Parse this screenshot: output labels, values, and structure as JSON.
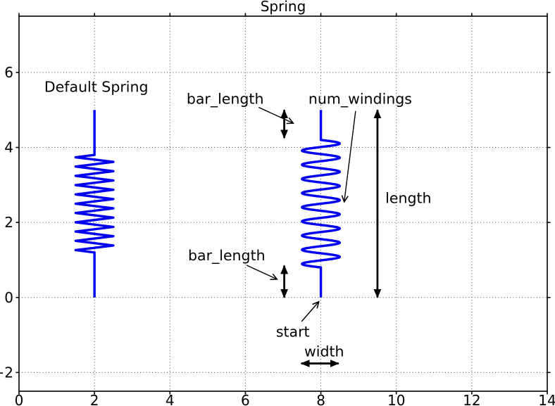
{
  "colors": {
    "spring": "#0000ee",
    "axis": "#000000",
    "grid": "#444444",
    "annotation": "#000000",
    "background": "#ffffff"
  },
  "chart_data": {
    "type": "line",
    "title": "Spring",
    "xlabel": "",
    "ylabel": "",
    "xlim": [
      0,
      14
    ],
    "ylim": [
      -2.5,
      7.5
    ],
    "xticks": [
      0,
      2,
      4,
      6,
      8,
      10,
      12,
      14
    ],
    "yticks": [
      -2,
      0,
      2,
      4,
      6
    ],
    "grid": "dotted",
    "legend": "none",
    "springs": [
      {
        "id": "spring-default",
        "start": [
          2,
          0
        ],
        "length": 5,
        "bar_length": 1.2,
        "num_windings": 10,
        "width": 1,
        "winding_shape": "zigzag"
      },
      {
        "id": "spring-annotated",
        "start": [
          8,
          0
        ],
        "length": 5,
        "bar_length": 0.8,
        "num_windings": 9,
        "width": 1,
        "winding_shape": "sine"
      }
    ],
    "annotations": {
      "texts": [
        {
          "id": "default-spring-label",
          "text": "Default Spring",
          "pos": [
            0.67,
            5.48
          ],
          "anchor": "start"
        },
        {
          "id": "bar-length-top-label",
          "text": "bar_length",
          "pos": [
            4.44,
            5.16
          ],
          "anchor": "start"
        },
        {
          "id": "num-windings-label",
          "text": "num_windings",
          "pos": [
            7.67,
            5.16
          ],
          "anchor": "start"
        },
        {
          "id": "length-label",
          "text": "length",
          "pos": [
            9.71,
            2.52
          ],
          "anchor": "start"
        },
        {
          "id": "bar-length-bottom-label",
          "text": "bar_length",
          "pos": [
            4.48,
            0.99
          ],
          "anchor": "start"
        },
        {
          "id": "start-label",
          "text": "start",
          "pos": [
            6.81,
            -1.05
          ],
          "anchor": "start"
        },
        {
          "id": "width-label",
          "text": "width",
          "pos": [
            7.56,
            -1.57
          ],
          "anchor": "start"
        }
      ],
      "pointer_arrows": [
        {
          "id": "bar-length-top-arrow",
          "from": [
            6.35,
            5.07
          ],
          "to": [
            7.26,
            4.65
          ]
        },
        {
          "id": "num-windings-arrow",
          "from": [
            8.92,
            4.97
          ],
          "to": [
            8.62,
            2.56
          ]
        },
        {
          "id": "bar-length-bottom-arrow",
          "from": [
            6.03,
            0.86
          ],
          "to": [
            6.83,
            0.49
          ]
        },
        {
          "id": "start-arrow",
          "from": [
            7.49,
            -0.64
          ],
          "to": [
            7.94,
            -0.12
          ]
        }
      ],
      "double_arrows": [
        {
          "id": "bar-length-top-span",
          "from": [
            7.03,
            4.25
          ],
          "to": [
            7.03,
            5.0
          ]
        },
        {
          "id": "bar-length-bottom-span",
          "from": [
            7.03,
            0.0
          ],
          "to": [
            7.03,
            0.85
          ]
        },
        {
          "id": "length-span",
          "from": [
            9.5,
            0.0
          ],
          "to": [
            9.5,
            5.0
          ]
        },
        {
          "id": "width-span",
          "from": [
            7.48,
            -1.76
          ],
          "to": [
            8.47,
            -1.76
          ]
        }
      ]
    }
  }
}
